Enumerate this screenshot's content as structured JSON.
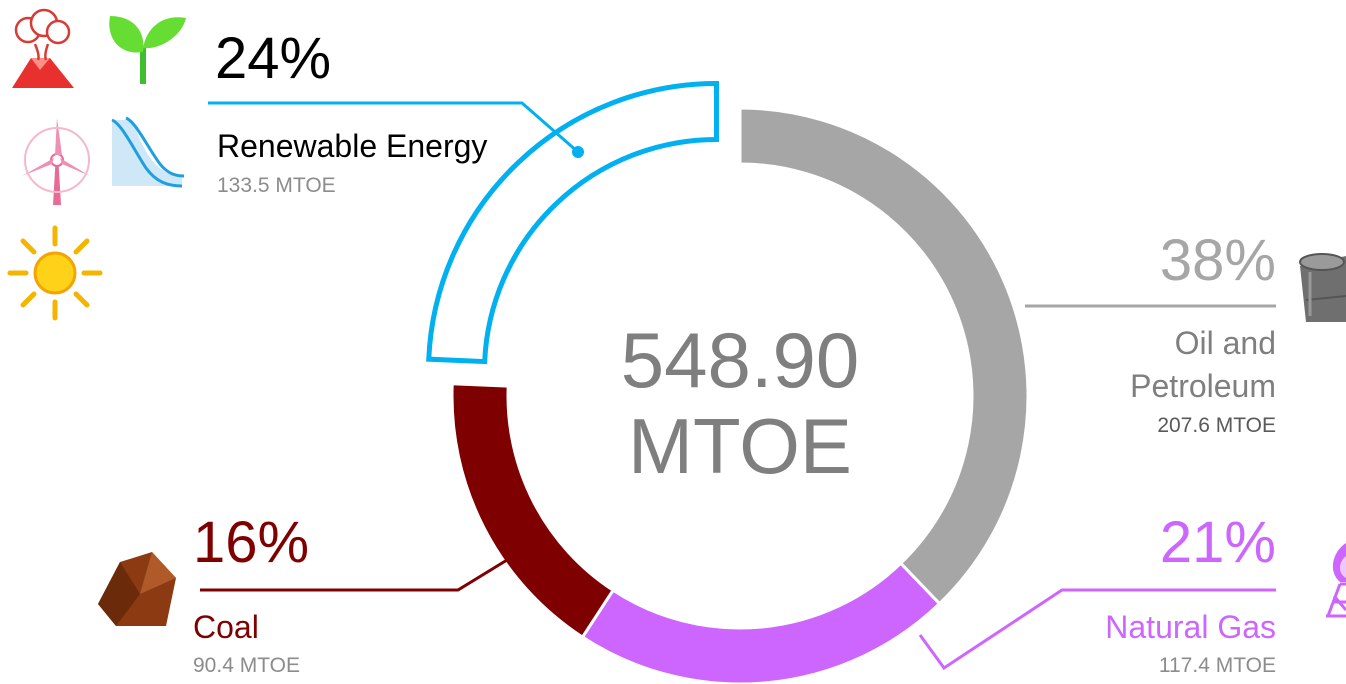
{
  "chart_data": {
    "type": "pie",
    "subtype": "donut",
    "unit": "MTOE",
    "total_label": [
      "548.90",
      "MTOE"
    ],
    "segments": [
      {
        "name": "Oil and Petroleum",
        "label_lines": [
          "Oil and",
          "Petroleum"
        ],
        "percent_label": "38%",
        "value": 207.6,
        "value_label": "207.6 MTOE",
        "color": "#a6a6a6"
      },
      {
        "name": "Natural Gas",
        "label_lines": [
          "Natural Gas"
        ],
        "percent_label": "21%",
        "value": 117.4,
        "value_label": "117.4 MTOE",
        "color": "#cc66ff"
      },
      {
        "name": "Coal",
        "label_lines": [
          "Coal"
        ],
        "percent_label": "16%",
        "value": 90.4,
        "value_label": "90.4 MTOE",
        "color": "#7f0000"
      },
      {
        "name": "Renewable Energy",
        "label_lines": [
          "Renewable Energy"
        ],
        "percent_label": "24%",
        "value": 133.5,
        "value_label": "133.5 MTOE",
        "color": "#ffffff",
        "outline": "#00b0f0",
        "highlighted": true
      }
    ]
  },
  "icons": {
    "renewable": [
      "volcano-icon",
      "sprout-icon",
      "wind-turbine-icon",
      "dam-icon",
      "sun-icon"
    ],
    "oil": "oil-barrel-icon",
    "gas": "gas-derrick-icon",
    "coal": "coal-lump-icon"
  }
}
